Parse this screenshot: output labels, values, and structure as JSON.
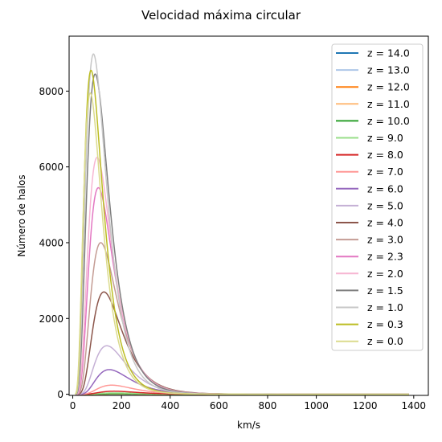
{
  "chart_data": {
    "type": "line",
    "title": "Velocidad máxima circular",
    "xlabel": "km/s",
    "ylabel": "Número de halos",
    "xlim": [
      -15,
      1460
    ],
    "ylim": [
      -30,
      9450
    ],
    "xticks": [
      0,
      200,
      400,
      600,
      800,
      1000,
      1200,
      1400
    ],
    "yticks": [
      0,
      2000,
      4000,
      6000,
      8000
    ],
    "grid": false,
    "legend_position": "top-right",
    "x_end": 1390,
    "series": [
      {
        "name": "z = 14.0",
        "color": "#1f77b4",
        "peak_x": 200,
        "peak_y": 1,
        "width": 30
      },
      {
        "name": "z = 13.0",
        "color": "#aec7e8",
        "peak_x": 195,
        "peak_y": 2,
        "width": 32
      },
      {
        "name": "z = 12.0",
        "color": "#ff7f0e",
        "peak_x": 190,
        "peak_y": 4,
        "width": 34
      },
      {
        "name": "z = 11.0",
        "color": "#ffbb78",
        "peak_x": 185,
        "peak_y": 8,
        "width": 36
      },
      {
        "name": "z = 10.0",
        "color": "#2ca02c",
        "peak_x": 180,
        "peak_y": 15,
        "width": 38
      },
      {
        "name": "z = 9.0",
        "color": "#98df8a",
        "peak_x": 175,
        "peak_y": 35,
        "width": 40
      },
      {
        "name": "z = 8.0",
        "color": "#d62728",
        "peak_x": 170,
        "peak_y": 80,
        "width": 42
      },
      {
        "name": "z = 7.0",
        "color": "#ff9896",
        "peak_x": 160,
        "peak_y": 240,
        "width": 44
      },
      {
        "name": "z = 6.0",
        "color": "#9467bd",
        "peak_x": 150,
        "peak_y": 650,
        "width": 46
      },
      {
        "name": "z = 5.0",
        "color": "#c5b0d5",
        "peak_x": 140,
        "peak_y": 1280,
        "width": 48
      },
      {
        "name": "z = 4.0",
        "color": "#8c564b",
        "peak_x": 128,
        "peak_y": 2700,
        "width": 50
      },
      {
        "name": "z = 3.0",
        "color": "#c49c94",
        "peak_x": 115,
        "peak_y": 4000,
        "width": 52
      },
      {
        "name": "z = 2.3",
        "color": "#e377c2",
        "peak_x": 105,
        "peak_y": 5450,
        "width": 54
      },
      {
        "name": "z = 2.0",
        "color": "#f7b6d2",
        "peak_x": 100,
        "peak_y": 6250,
        "width": 56
      },
      {
        "name": "z = 1.5",
        "color": "#7f7f7f",
        "peak_x": 92,
        "peak_y": 8450,
        "width": 58
      },
      {
        "name": "z = 1.0",
        "color": "#c7c7c7",
        "peak_x": 85,
        "peak_y": 8980,
        "width": 60
      },
      {
        "name": "z = 0.3",
        "color": "#bcbd22",
        "peak_x": 75,
        "peak_y": 8550,
        "width": 62
      },
      {
        "name": "z = 0.0",
        "color": "#dbdb8d",
        "peak_x": 72,
        "peak_y": 7950,
        "width": 64
      }
    ]
  }
}
